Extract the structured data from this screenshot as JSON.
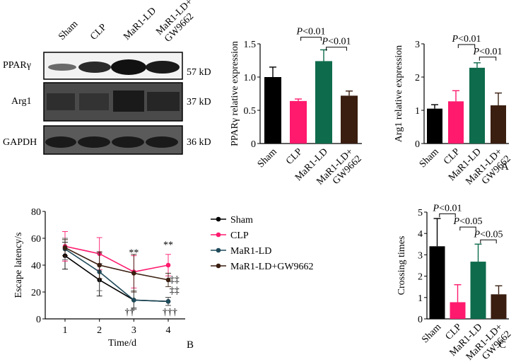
{
  "colors": {
    "sham": "#000000",
    "clp": "#ff1a6e",
    "mar1_ld": "#0e6b4c",
    "mar1_gw": "#3a1e10",
    "line_mar1_ld": "#1f4a5a",
    "line_mar1_gw": "#3a1e10"
  },
  "blot": {
    "lane_labels": [
      "Sham",
      "CLP",
      "MaR1-LD",
      "MaR1-LD+",
      "GW9662"
    ],
    "rows": [
      {
        "name": "PPARγ",
        "size": "57 kD"
      },
      {
        "name": "Arg1",
        "size": "37 kD"
      },
      {
        "name": "GAPDH",
        "size": "36 kD"
      }
    ]
  },
  "panel_labels": {
    "a": "A",
    "b": "B",
    "c": "C"
  },
  "chart_data": [
    {
      "type": "bar",
      "id": "ppar",
      "categories": [
        "Sham",
        "CLP",
        "MaR1-LD",
        "MaR1-LD+GW9662"
      ],
      "category_lines": [
        [
          "Sham"
        ],
        [
          "CLP"
        ],
        [
          "MaR1-LD"
        ],
        [
          "MaR1-LD+",
          "GW9662"
        ]
      ],
      "values": [
        1.0,
        0.64,
        1.24,
        0.72
      ],
      "errors": [
        0.15,
        0.03,
        0.17,
        0.07
      ],
      "ylabel": "PPARγ relative expression",
      "ylim": [
        0,
        1.5
      ],
      "yticks": [
        0,
        0.5,
        1.0,
        1.5
      ],
      "ytick_labels": [
        "0",
        "0.5",
        "1.0",
        "1.5"
      ],
      "annotations": [
        {
          "text": "P<0.01",
          "from": 1,
          "to": 2,
          "level": 1.6
        },
        {
          "text": "P<0.01",
          "from": 2,
          "to": 3,
          "level": 1.45
        }
      ]
    },
    {
      "type": "bar",
      "id": "arg1",
      "categories": [
        "Sham",
        "CLP",
        "MaR1-LD",
        "MaR1-LD+GW9662"
      ],
      "category_lines": [
        [
          "Sham"
        ],
        [
          "CLP"
        ],
        [
          "MaR1-LD"
        ],
        [
          "MaR1-LD+",
          "GW9662"
        ]
      ],
      "values": [
        1.05,
        1.27,
        2.28,
        1.15
      ],
      "errors": [
        0.12,
        0.32,
        0.15,
        0.37
      ],
      "ylabel": "Arg1 relative expression",
      "ylim": [
        0,
        3
      ],
      "yticks": [
        0,
        1,
        2,
        3
      ],
      "ytick_labels": [
        "0",
        "1",
        "2",
        "3"
      ],
      "annotations": [
        {
          "text": "P<0.01",
          "from": 1,
          "to": 2,
          "level": 2.98
        },
        {
          "text": "P<0.01",
          "from": 2,
          "to": 3,
          "level": 2.6
        }
      ]
    },
    {
      "type": "line",
      "id": "latency",
      "x": [
        1,
        2,
        3,
        4
      ],
      "xlabel": "Time/d",
      "ylabel": "Escape latency/s",
      "ylim": [
        0,
        80
      ],
      "yticks": [
        0,
        20,
        40,
        60,
        80
      ],
      "ytick_labels": [
        "0",
        "20",
        "40",
        "60",
        "80"
      ],
      "xticks": [
        1,
        2,
        3,
        4
      ],
      "xtick_labels": [
        "1",
        "2",
        "3",
        "4"
      ],
      "legend_position": "right",
      "series": [
        {
          "name": "Sham",
          "values": [
            47,
            29,
            14,
            13
          ],
          "errors": [
            10,
            12,
            6,
            3
          ],
          "marker": "circle"
        },
        {
          "name": "CLP",
          "values": [
            54,
            48.5,
            35,
            40
          ],
          "errors": [
            11,
            12,
            12,
            8
          ],
          "marker": "circle"
        },
        {
          "name": "MaR1-LD",
          "values": [
            52,
            35,
            14,
            13
          ],
          "errors": [
            8,
            14,
            7,
            3
          ],
          "marker": "circle"
        },
        {
          "name": "MaR1-LD+GW9662",
          "values": [
            53,
            40,
            34,
            29
          ],
          "errors": [
            6,
            10,
            14,
            5
          ],
          "marker": "circle"
        }
      ],
      "annotations": [
        {
          "text": "**",
          "x": 3,
          "y": 47
        },
        {
          "text": "**",
          "x": 4,
          "y": 53
        },
        {
          "text": "‡‡",
          "x": 4.18,
          "y": 27
        },
        {
          "text": "‡‡",
          "x": 4.18,
          "y": 19
        },
        {
          "text": "††",
          "x": 2.88,
          "y": 3
        },
        {
          "text": "†††",
          "x": 4.05,
          "y": 3
        }
      ]
    },
    {
      "type": "bar",
      "id": "crossing",
      "categories": [
        "Sham",
        "CLP",
        "MaR1-LD",
        "MaR1-LD+GW9662"
      ],
      "category_lines": [
        [
          "Sham"
        ],
        [
          "CLP"
        ],
        [
          "MaR1-LD"
        ],
        [
          "MaR1-LD+",
          "GW9662"
        ]
      ],
      "values": [
        3.4,
        0.78,
        2.68,
        1.15
      ],
      "errors": [
        1.3,
        0.82,
        0.82,
        0.4
      ],
      "ylabel": "Crossing times",
      "ylim": [
        0,
        5
      ],
      "yticks": [
        0,
        1,
        2,
        3,
        4,
        5
      ],
      "ytick_labels": [
        "0",
        "1",
        "2",
        "3",
        "4",
        "5"
      ],
      "annotations": [
        {
          "text": "P<0.01",
          "from": 0,
          "to": 1,
          "level": 4.92
        },
        {
          "text": "P<0.05",
          "from": 1,
          "to": 2,
          "level": 4.3
        },
        {
          "text": "P<0.05",
          "from": 2,
          "to": 3,
          "level": 3.7
        }
      ]
    }
  ]
}
